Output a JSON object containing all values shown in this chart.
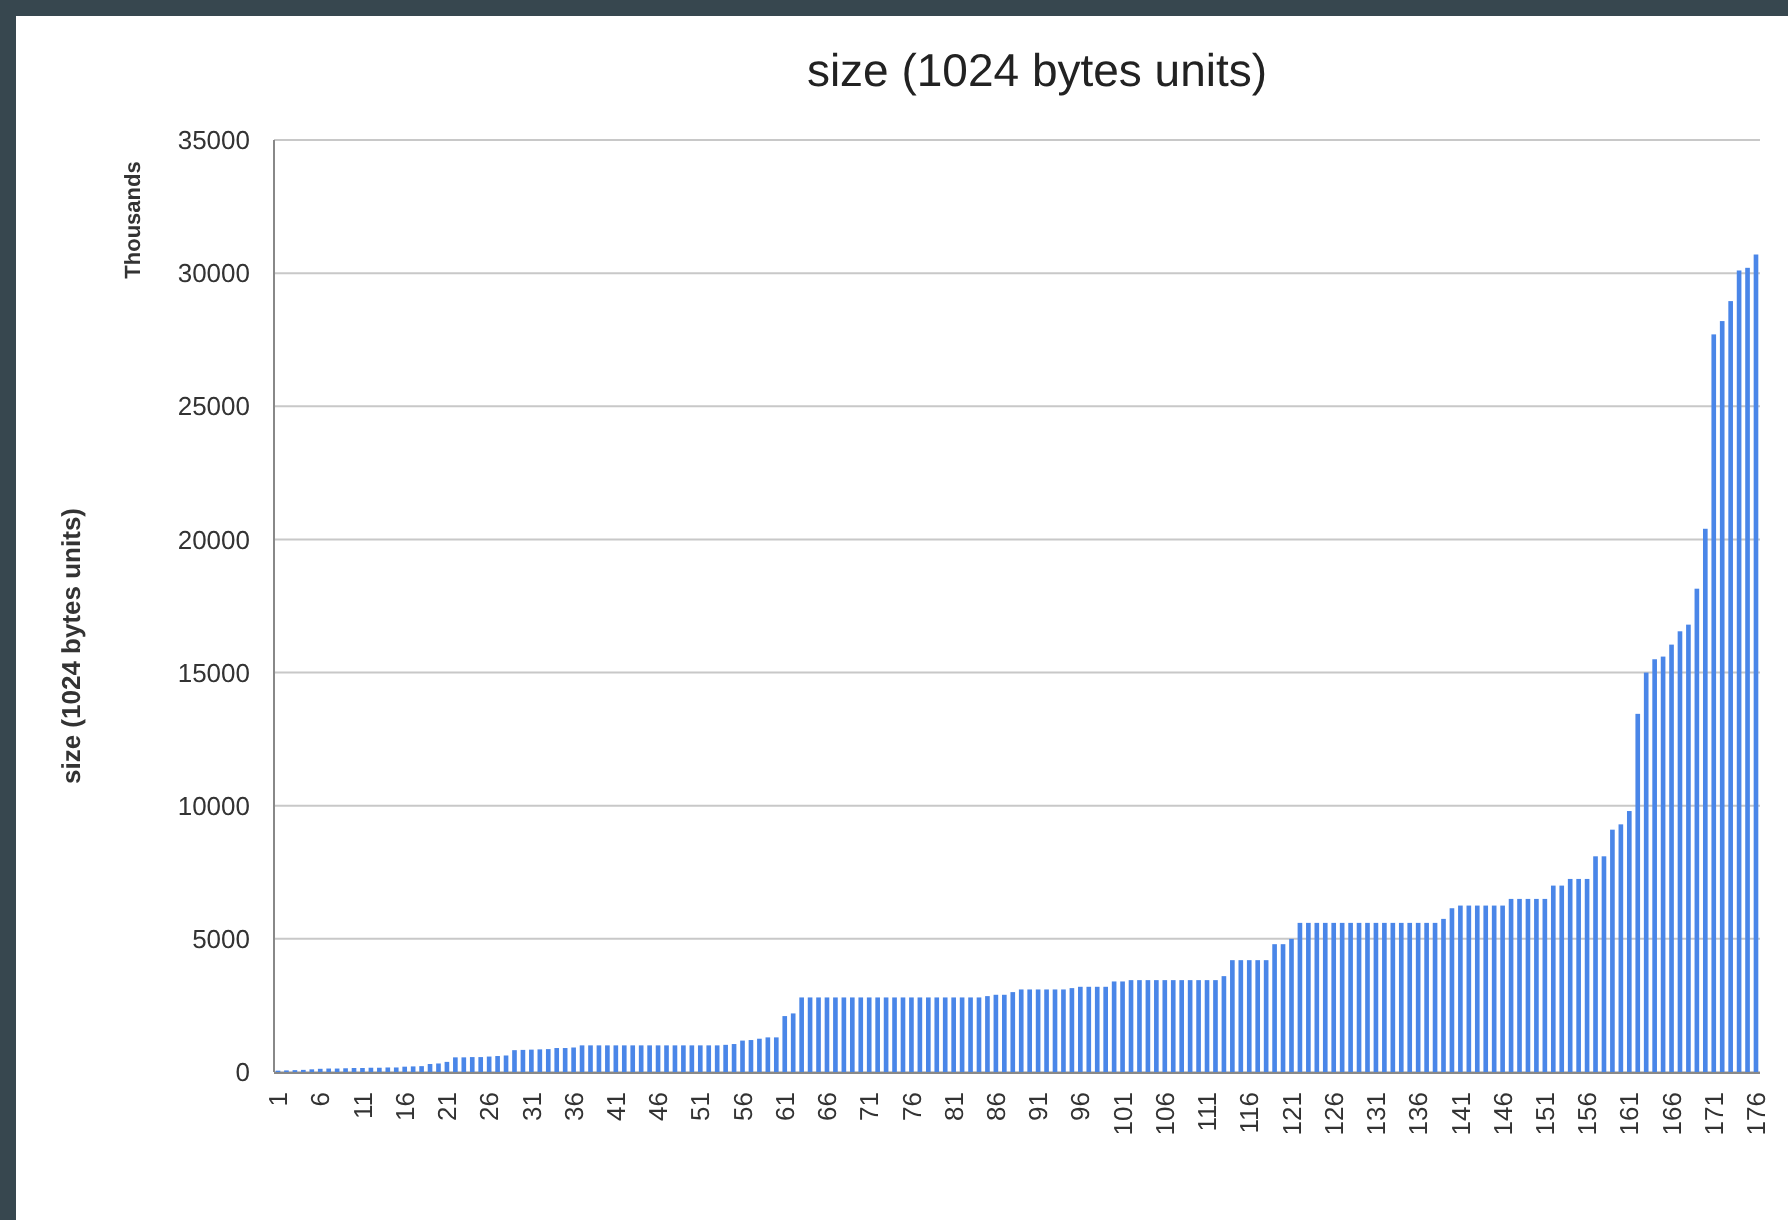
{
  "chart_data": {
    "type": "bar",
    "title": "size (1024 bytes units)",
    "ylabel": "size (1024 bytes units)",
    "annotations": [
      "Thousands"
    ],
    "categories": [
      "1",
      null,
      null,
      null,
      null,
      "6",
      null,
      null,
      null,
      null,
      "11",
      null,
      null,
      null,
      null,
      "16",
      null,
      null,
      null,
      null,
      "21",
      null,
      null,
      null,
      null,
      "26",
      null,
      null,
      null,
      null,
      "31",
      null,
      null,
      null,
      null,
      "36",
      null,
      null,
      null,
      null,
      "41",
      null,
      null,
      null,
      null,
      "46",
      null,
      null,
      null,
      null,
      "51",
      null,
      null,
      null,
      null,
      "56",
      null,
      null,
      null,
      null,
      "61",
      null,
      null,
      null,
      null,
      "66",
      null,
      null,
      null,
      null,
      "71",
      null,
      null,
      null,
      null,
      "76",
      null,
      null,
      null,
      null,
      "81",
      null,
      null,
      null,
      null,
      "86",
      null,
      null,
      null,
      null,
      "91",
      null,
      null,
      null,
      null,
      "96",
      null,
      null,
      null,
      null,
      "101",
      null,
      null,
      null,
      null,
      "106",
      null,
      null,
      null,
      null,
      "111",
      null,
      null,
      null,
      null,
      "116",
      null,
      null,
      null,
      null,
      "121",
      null,
      null,
      null,
      null,
      "126",
      null,
      null,
      null,
      null,
      "131",
      null,
      null,
      null,
      null,
      "136",
      null,
      null,
      null,
      null,
      "141",
      null,
      null,
      null,
      null,
      "146",
      null,
      null,
      null,
      null,
      "151",
      null,
      null,
      null,
      null,
      "156",
      null,
      null,
      null,
      null,
      "161",
      null,
      null,
      null,
      null,
      "166",
      null,
      null,
      null,
      null,
      "171",
      null,
      null,
      null,
      null,
      "176"
    ],
    "values": [
      50,
      60,
      70,
      80,
      100,
      120,
      130,
      130,
      140,
      150,
      150,
      160,
      160,
      170,
      170,
      200,
      210,
      220,
      300,
      320,
      380,
      550,
      550,
      560,
      560,
      580,
      600,
      620,
      820,
      830,
      840,
      850,
      860,
      900,
      900,
      920,
      1000,
      1000,
      1000,
      1000,
      1000,
      1000,
      1000,
      1000,
      1000,
      1000,
      1000,
      1000,
      1000,
      1000,
      1000,
      1000,
      1000,
      1020,
      1050,
      1180,
      1200,
      1250,
      1300,
      1300,
      2100,
      2200,
      2800,
      2800,
      2800,
      2800,
      2800,
      2800,
      2800,
      2800,
      2800,
      2800,
      2800,
      2800,
      2800,
      2800,
      2800,
      2800,
      2800,
      2800,
      2800,
      2800,
      2800,
      2800,
      2850,
      2900,
      2900,
      3000,
      3100,
      3100,
      3100,
      3100,
      3100,
      3100,
      3150,
      3200,
      3200,
      3200,
      3200,
      3400,
      3400,
      3450,
      3450,
      3450,
      3450,
      3450,
      3450,
      3450,
      3450,
      3450,
      3450,
      3450,
      3600,
      4200,
      4200,
      4200,
      4200,
      4200,
      4800,
      4800,
      5000,
      5600,
      5600,
      5600,
      5600,
      5600,
      5600,
      5600,
      5600,
      5600,
      5600,
      5600,
      5600,
      5600,
      5600,
      5600,
      5600,
      5600,
      5750,
      6150,
      6250,
      6250,
      6250,
      6250,
      6250,
      6250,
      6500,
      6500,
      6500,
      6500,
      6500,
      7000,
      7000,
      7250,
      7250,
      7250,
      8100,
      8100,
      9100,
      9300,
      9800,
      13450,
      15000,
      15500,
      15600,
      16050,
      16550,
      16800,
      18150,
      20400,
      27700,
      28200,
      28950,
      30100,
      30200,
      30700
    ],
    "color": "#4a86e8",
    "ylim": [
      0,
      35000
    ],
    "yticks": [
      0,
      5000,
      10000,
      15000,
      20000,
      25000,
      30000,
      35000
    ],
    "grid": "y"
  }
}
